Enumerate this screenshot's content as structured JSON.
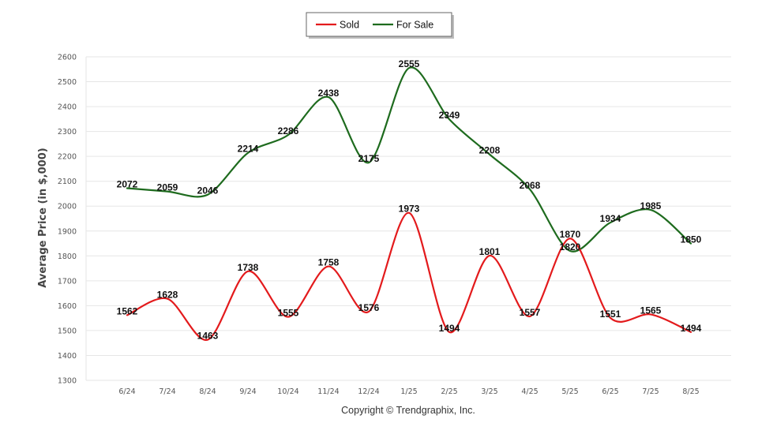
{
  "chart_data": {
    "type": "line",
    "categories": [
      "6/24",
      "7/24",
      "8/24",
      "9/24",
      "10/24",
      "11/24",
      "12/24",
      "1/25",
      "2/25",
      "3/25",
      "4/25",
      "5/25",
      "6/25",
      "7/25",
      "8/25"
    ],
    "series": [
      {
        "name": "Sold",
        "color": "#e31a1c",
        "values": [
          1562,
          1628,
          1463,
          1738,
          1555,
          1758,
          1576,
          1973,
          1494,
          1801,
          1557,
          1870,
          1551,
          1565,
          1494
        ]
      },
      {
        "name": "For Sale",
        "color": "#1e6b1e",
        "values": [
          2072,
          2059,
          2046,
          2214,
          2286,
          2438,
          2175,
          2555,
          2349,
          2208,
          2068,
          1820,
          1934,
          1985,
          1850
        ]
      }
    ],
    "ylabel": "Average Price (in $,000)",
    "ylim": [
      1300,
      2600
    ],
    "yticks": [
      1300,
      1400,
      1500,
      1600,
      1700,
      1800,
      1900,
      2000,
      2100,
      2200,
      2300,
      2400,
      2500,
      2600
    ],
    "grid": true,
    "legend_position": "top-center",
    "smooth": true
  },
  "footer": {
    "copyright": "Copyright © Trendgraphix, Inc."
  }
}
